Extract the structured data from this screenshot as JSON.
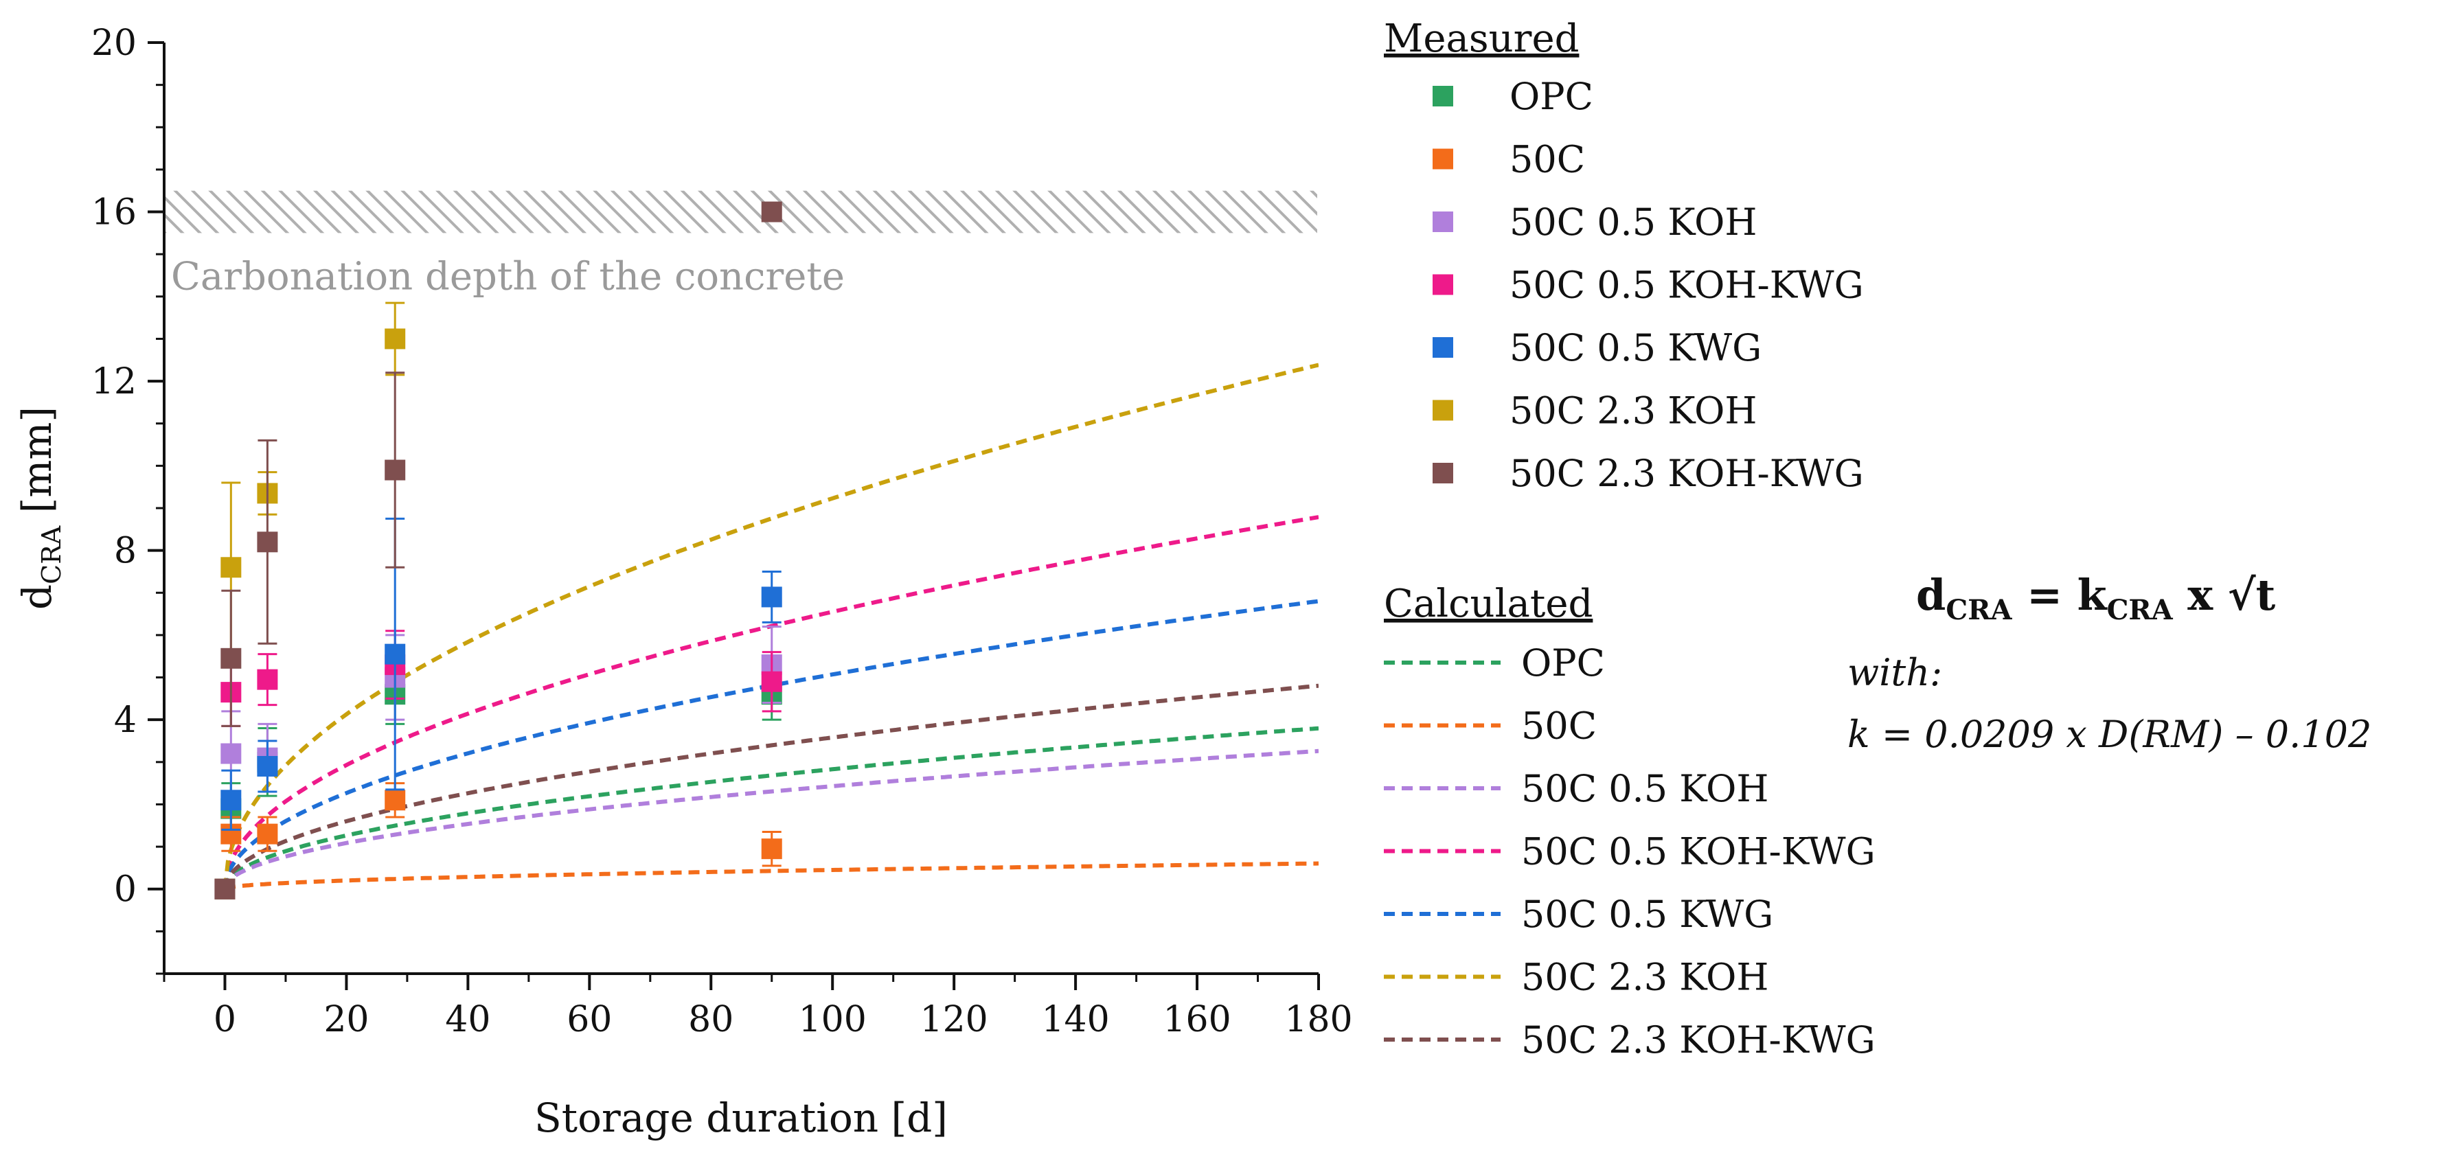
{
  "chart_data": {
    "type": "scatter",
    "xlabel": "Storage duration [d]",
    "ylabel_main": "d",
    "ylabel_sub": "CRA",
    "ylabel_unit": " [mm]",
    "xlim": [
      -10,
      180
    ],
    "ylim": [
      -2,
      20
    ],
    "xticks": [
      0,
      20,
      40,
      60,
      80,
      100,
      120,
      140,
      160,
      180
    ],
    "yticks": [
      0,
      4,
      8,
      12,
      16,
      20
    ],
    "band": {
      "y0": 15.5,
      "y1": 16.5,
      "label": "Carbonation depth of the concrete"
    },
    "legend_measured_title": "Measured",
    "legend_calculated_title": "Calculated",
    "measured": [
      {
        "name": "OPC",
        "color": "#2ca25f",
        "points": [
          {
            "x": 0,
            "y": 0,
            "err": 0
          },
          {
            "x": 1,
            "y": 1.9,
            "err": 0.6
          },
          {
            "x": 7,
            "y": 3.0,
            "err": 0.8
          },
          {
            "x": 28,
            "y": 4.6,
            "err": 0.7
          },
          {
            "x": 90,
            "y": 4.6,
            "err": 0.6
          }
        ]
      },
      {
        "name": "50C",
        "color": "#f36c1a",
        "points": [
          {
            "x": 0,
            "y": 0,
            "err": 0
          },
          {
            "x": 1,
            "y": 1.3,
            "err": 0.4
          },
          {
            "x": 7,
            "y": 1.3,
            "err": 0.4
          },
          {
            "x": 28,
            "y": 2.1,
            "err": 0.4
          },
          {
            "x": 90,
            "y": 0.95,
            "err": 0.4
          }
        ]
      },
      {
        "name": "50C 0.5 KOH",
        "color": "#b07fdc",
        "points": [
          {
            "x": 0,
            "y": 0,
            "err": 0
          },
          {
            "x": 1,
            "y": 3.2,
            "err": 1.0
          },
          {
            "x": 7,
            "y": 3.1,
            "err": 0.8
          },
          {
            "x": 28,
            "y": 5.0,
            "err": 1.0
          },
          {
            "x": 90,
            "y": 5.3,
            "err": 0.9
          }
        ]
      },
      {
        "name": "50C 0.5 KOH-KWG",
        "color": "#ee1a8a",
        "points": [
          {
            "x": 0,
            "y": 0,
            "err": 0
          },
          {
            "x": 1,
            "y": 4.65,
            "err": 0.8
          },
          {
            "x": 7,
            "y": 4.95,
            "err": 0.6
          },
          {
            "x": 28,
            "y": 5.3,
            "err": 0.8
          },
          {
            "x": 90,
            "y": 4.9,
            "err": 0.7
          }
        ]
      },
      {
        "name": "50C 0.5 KWG",
        "color": "#1f6fd6",
        "points": [
          {
            "x": 0,
            "y": 0,
            "err": 0
          },
          {
            "x": 1,
            "y": 2.1,
            "err": 0.7
          },
          {
            "x": 7,
            "y": 2.9,
            "err": 0.6
          },
          {
            "x": 28,
            "y": 5.55,
            "err": 3.2
          },
          {
            "x": 90,
            "y": 6.9,
            "err": 0.6
          }
        ]
      },
      {
        "name": "50C 2.3 KOH",
        "color": "#c9a10d",
        "points": [
          {
            "x": 0,
            "y": 0,
            "err": 0
          },
          {
            "x": 1,
            "y": 7.6,
            "err": 2.0
          },
          {
            "x": 7,
            "y": 9.35,
            "err": 0.5
          },
          {
            "x": 28,
            "y": 13.0,
            "err": 0.85
          }
        ]
      },
      {
        "name": "50C 2.3 KOH-KWG",
        "color": "#7f4f4f",
        "points": [
          {
            "x": 0,
            "y": 0,
            "err": 0
          },
          {
            "x": 1,
            "y": 5.45,
            "err": 1.6
          },
          {
            "x": 7,
            "y": 8.2,
            "err": 2.4
          },
          {
            "x": 28,
            "y": 9.9,
            "err": 2.3
          },
          {
            "x": 90,
            "y": 16.0,
            "err": 0
          }
        ]
      }
    ],
    "calculated": [
      {
        "name": "OPC",
        "color": "#2ca25f",
        "k": 0.283
      },
      {
        "name": "50C",
        "color": "#f36c1a",
        "k": 0.045
      },
      {
        "name": "50C 0.5 KOH",
        "color": "#b07fdc",
        "k": 0.243
      },
      {
        "name": "50C 0.5 KOH-KWG",
        "color": "#ee1a8a",
        "k": 0.655
      },
      {
        "name": "50C 0.5 KWG",
        "color": "#1f6fd6",
        "k": 0.507
      },
      {
        "name": "50C 2.3 KOH",
        "color": "#c9a10d",
        "k": 0.923
      },
      {
        "name": "50C 2.3 KOH-KWG",
        "color": "#7f4f4f",
        "k": 0.358
      }
    ],
    "formula": {
      "main_lhs": "d",
      "main_lhs_sub": "CRA",
      "main_mid": " = k",
      "main_mid_sub": "CRA",
      "main_rhs": " x ",
      "sqrt_symbol": "√",
      "sqrt_arg": "t",
      "line2": "with:",
      "line3": "k = 0.0209  x  D(RM)  –  0.102"
    }
  }
}
